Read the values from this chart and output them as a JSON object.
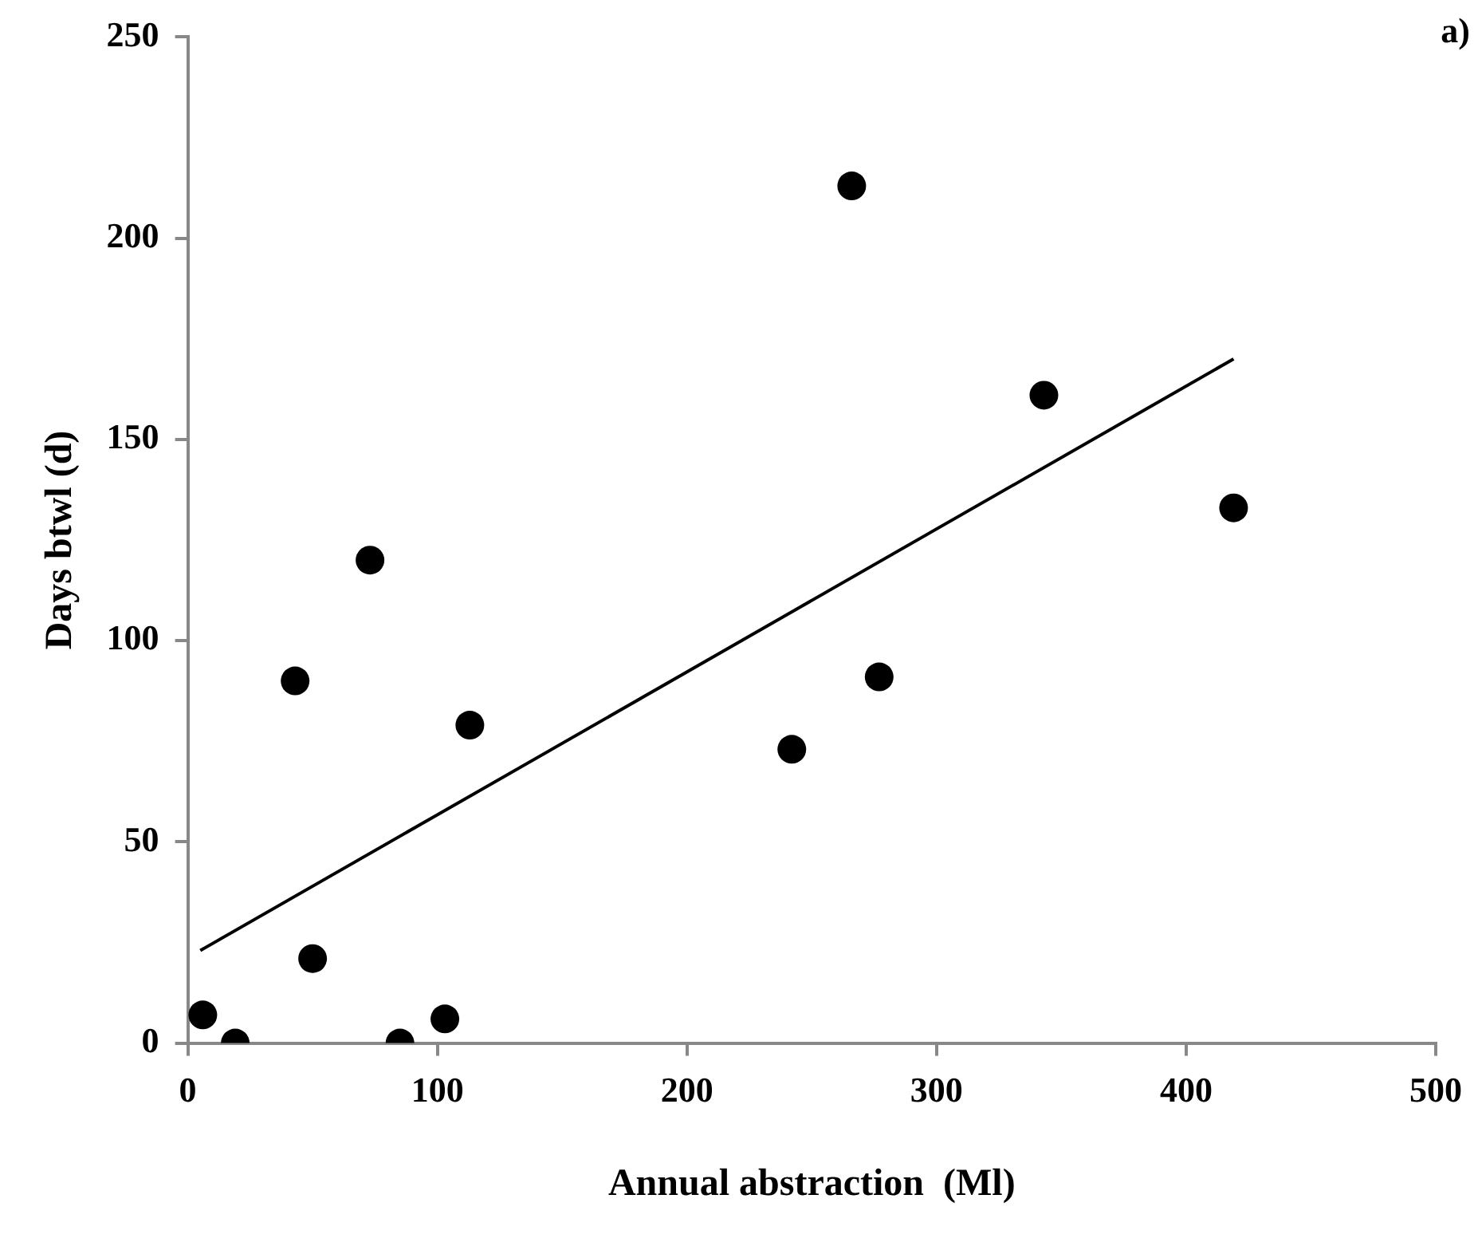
{
  "chart_data": {
    "type": "scatter",
    "xlabel": "Annual abstraction  (Ml)",
    "ylabel": "Days btwl (d)",
    "annotations": [
      "a)"
    ],
    "xlim": [
      0,
      500
    ],
    "xticks": [
      0,
      100,
      200,
      300,
      400,
      500
    ],
    "ylim": [
      0,
      250
    ],
    "yticks": [
      0,
      50,
      100,
      150,
      200,
      250
    ],
    "grid": false,
    "legend": false,
    "marker": "circle",
    "series": [
      {
        "color": "#000000",
        "x": [
          6,
          19,
          43,
          50,
          73,
          85,
          103,
          113,
          242,
          266,
          277,
          343,
          419
        ],
        "values": [
          7,
          0,
          90,
          21,
          120,
          0,
          6,
          79,
          73,
          213,
          91,
          161,
          133
        ]
      },
      {
        "type": "line",
        "color": "#000000",
        "marker": "none",
        "line_style": "solid",
        "x": [
          5,
          419
        ],
        "values": [
          23,
          170
        ]
      }
    ]
  }
}
